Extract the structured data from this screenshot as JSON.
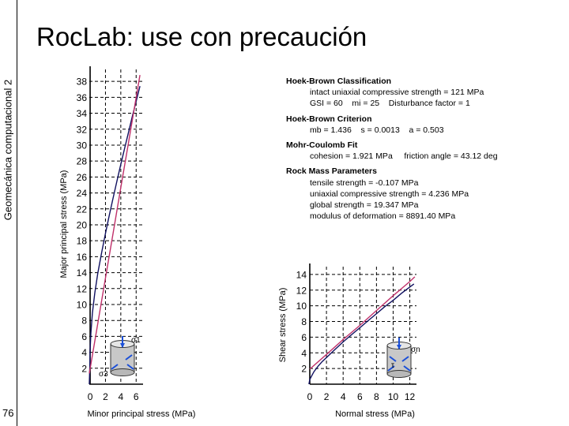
{
  "slide": {
    "title": "RocLab: use con precaución",
    "side_label": "Geomecánica computacional 2",
    "page_number": "76"
  },
  "parameters": {
    "hoek_brown_classification": {
      "heading": "Hoek-Brown Classification",
      "line1": "intact uniaxial compressive strength = 121 MPa",
      "line2": "GSI = 60    mi = 25    Disturbance factor = 1"
    },
    "hoek_brown_criterion": {
      "heading": "Hoek-Brown Criterion",
      "line1": "mb = 1.436    s = 0.0013    a = 0.503"
    },
    "mohr_coulomb_fit": {
      "heading": "Mohr-Coulomb Fit",
      "line1": "cohesion = 1.921 MPa     friction angle = 43.12 deg"
    },
    "rock_mass_parameters": {
      "heading": "Rock Mass Parameters",
      "line1": "tensile strength = -0.107 MPa",
      "line2": "uniaxial compressive strength = 4.236 MPa",
      "line3": "global strength = 19.347 MPa",
      "line4": "modulus of deformation = 8891.40 MPa"
    }
  },
  "chart_data": [
    {
      "type": "line",
      "xlabel": "Minor principal stress (MPa)",
      "ylabel": "Major principal stress (MPa)",
      "xlim": [
        -0.107,
        6.9
      ],
      "ylim": [
        0,
        39.5
      ],
      "xticks": [
        0,
        2,
        4,
        6
      ],
      "yticks": [
        2,
        4,
        6,
        8,
        10,
        12,
        14,
        16,
        18,
        20,
        22,
        24,
        26,
        28,
        30,
        32,
        34,
        36,
        38
      ],
      "grid": true,
      "series": [
        {
          "color": "#101060",
          "x": [
            -0.107,
            -0.05,
            0,
            0.1,
            0.3,
            0.6,
            1,
            1.5,
            2,
            2.5,
            3,
            3.5,
            4,
            4.5,
            5,
            5.5,
            6,
            6.5
          ],
          "y": [
            0,
            2.0,
            4.2,
            6.4,
            8.9,
            11.4,
            13.9,
            16.5,
            18.9,
            21.2,
            23.4,
            25.5,
            27.6,
            29.6,
            31.6,
            33.6,
            35.5,
            37.4
          ]
        },
        {
          "color": "#c0306a",
          "x": [
            -0.107,
            0,
            1,
            2,
            3,
            4,
            5,
            6,
            6.5
          ],
          "y": [
            1.35,
            1.92,
            7.6,
            13.3,
            19.0,
            24.7,
            30.3,
            36.0,
            38.8
          ]
        }
      ],
      "annotations": [
        "σ1",
        "σ3"
      ]
    },
    {
      "type": "line",
      "xlabel": "Normal stress (MPa)",
      "ylabel": "Shear stress (MPa)",
      "xlim": [
        0,
        12.8
      ],
      "ylim": [
        0,
        15
      ],
      "xticks": [
        0,
        2,
        4,
        6,
        8,
        10,
        12
      ],
      "yticks": [
        2,
        4,
        6,
        8,
        10,
        12,
        14
      ],
      "grid": true,
      "series": [
        {
          "color": "#101060",
          "x": [
            -0.1,
            0,
            0.25,
            0.5,
            1,
            1.5,
            2,
            3,
            4,
            5,
            6,
            7,
            8,
            9,
            10,
            11,
            12,
            12.5
          ],
          "y": [
            0,
            0.6,
            1.1,
            1.6,
            2.3,
            2.9,
            3.4,
            4.4,
            5.4,
            6.3,
            7.2,
            8.1,
            9.0,
            9.9,
            10.7,
            11.6,
            12.4,
            12.8
          ]
        },
        {
          "color": "#c0306a",
          "x": [
            0,
            2,
            4,
            6,
            8,
            10,
            12,
            12.6
          ],
          "y": [
            1.92,
            3.8,
            5.7,
            7.5,
            9.4,
            11.3,
            13.1,
            13.7
          ]
        }
      ],
      "annotations": [
        "σn",
        "τ"
      ]
    }
  ]
}
